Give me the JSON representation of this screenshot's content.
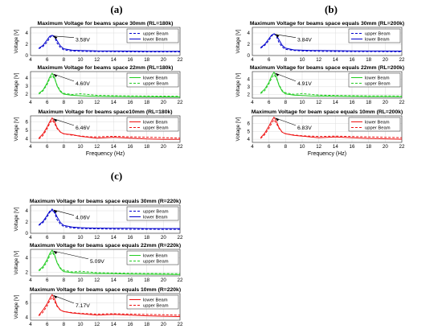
{
  "figure": {
    "groups": [
      {
        "letter": "(a)",
        "subplots": [
          {
            "title": "Maximum Voltage for beams space 30mm (RL=180k)",
            "annotation": "3.58V",
            "legend": [
              "upper Beam",
              "lower Beam"
            ],
            "color": "#0000cc",
            "solid_series": 1
          },
          {
            "title": "Maximum Voltage for beams space 22mm (RL=180k)",
            "annotation": "4.60V",
            "legend": [
              "lower Beam",
              "upper Beam"
            ],
            "color": "#22cc22",
            "solid_series": 0
          },
          {
            "title": "Maximum Voltage for beams space10mm (RL=180k)",
            "annotation": "6.46V",
            "legend": [
              "lower Beam",
              "upper Beam"
            ],
            "color": "#ee1111",
            "solid_series": 0
          }
        ]
      },
      {
        "letter": "(b)",
        "subplots": [
          {
            "title": "Maximum Voltage for beams space equals 30mm (RL=200k)",
            "annotation": "3.84V",
            "legend": [
              "upper Beam",
              "lower Beam"
            ],
            "color": "#0000cc",
            "solid_series": 1
          },
          {
            "title": "Maximum Voltage for beams space equals 22mm (RL=200k)",
            "annotation": "4.91V",
            "legend": [
              "lower Beam",
              "upper Beam"
            ],
            "color": "#22cc22",
            "solid_series": 0
          },
          {
            "title": "Maximum Voltage for beam space equals 10mm (RL=200k)",
            "annotation": "6.83V",
            "legend": [
              "lower Beam",
              "upper Beam"
            ],
            "color": "#ee1111",
            "solid_series": 0
          }
        ]
      },
      {
        "letter": "(c)",
        "subplots": [
          {
            "title": "Maximum Voltage for beams space equals 30mm (R=220k)",
            "annotation": "4.06V",
            "legend": [
              "upper Beam",
              "lower Beam"
            ],
            "color": "#0000cc",
            "solid_series": 1
          },
          {
            "title": "Maximum Voltage for beams space equals 22mm (R=220k)",
            "annotation": "5.09V",
            "legend": [
              "lower Beam",
              "upper Beam"
            ],
            "color": "#22cc22",
            "solid_series": 0
          },
          {
            "title": "Maximum Voltage for beams space equals 10mm (R=220k)",
            "annotation": "7.17V",
            "legend": [
              "lower Beam",
              "upper Beam"
            ],
            "color": "#ee1111",
            "solid_series": 0
          }
        ]
      }
    ],
    "xlabel": "Frequency (Hz)",
    "ylabel": "Voltage [V]"
  },
  "chart_data": [
    {
      "type": "line",
      "panel": "(a)",
      "title": "Maximum Voltage for beams space 30mm (RL=180k)",
      "xlabel": "",
      "ylabel": "Voltage [V]",
      "xlim": [
        4,
        22
      ],
      "ylim": [
        0,
        5
      ],
      "xticks": [
        4,
        6,
        8,
        10,
        12,
        14,
        16,
        18,
        20,
        22
      ],
      "yticks": [
        0,
        2,
        4
      ],
      "x": [
        5,
        5.5,
        6,
        6.3,
        6.6,
        6.9,
        7.2,
        7.6,
        8,
        9,
        10,
        11,
        12,
        14,
        16,
        18,
        20,
        22
      ],
      "series": [
        {
          "name": "upper Beam",
          "values": [
            1.2,
            1.6,
            2.4,
            3.1,
            3.6,
            3.2,
            2.2,
            1.4,
            1.0,
            0.8,
            0.75,
            0.72,
            0.7,
            0.68,
            0.66,
            0.65,
            0.65,
            0.64
          ]
        },
        {
          "name": "lower Beam",
          "values": [
            1.3,
            1.8,
            2.8,
            3.4,
            3.58,
            3.4,
            2.6,
            1.7,
            1.2,
            0.95,
            0.9,
            0.85,
            0.82,
            0.8,
            0.78,
            0.76,
            0.75,
            0.74
          ]
        }
      ],
      "annotation": "3.58V",
      "grid": true,
      "legend": "top-right"
    },
    {
      "type": "line",
      "panel": "(a)",
      "title": "Maximum Voltage for beams space 22mm (RL=180k)",
      "xlabel": "",
      "ylabel": "Voltage [V]",
      "xlim": [
        4,
        22
      ],
      "ylim": [
        1.5,
        4.8
      ],
      "xticks": [
        4,
        6,
        8,
        10,
        12,
        14,
        16,
        18,
        20,
        22
      ],
      "yticks": [
        2,
        3,
        4
      ],
      "x": [
        5,
        5.5,
        6,
        6.3,
        6.6,
        6.9,
        7.2,
        7.6,
        8,
        9,
        10,
        11,
        12,
        14,
        16,
        18,
        20,
        22
      ],
      "series": [
        {
          "name": "lower Beam",
          "values": [
            2.1,
            2.5,
            3.4,
            4.1,
            4.6,
            4.0,
            3.0,
            2.3,
            2.0,
            1.85,
            1.8,
            1.75,
            1.72,
            1.7,
            1.68,
            1.66,
            1.65,
            1.64
          ]
        },
        {
          "name": "upper Beam",
          "values": [
            2.0,
            2.4,
            3.2,
            3.9,
            4.3,
            3.9,
            3.1,
            2.4,
            2.1,
            1.95,
            2.05,
            1.95,
            1.85,
            1.8,
            1.78,
            1.76,
            1.75,
            1.74
          ]
        }
      ],
      "annotation": "4.60V",
      "grid": true,
      "legend": "top-right"
    },
    {
      "type": "line",
      "panel": "(a)",
      "title": "Maximum Voltage for beams space10mm (RL=180k)",
      "xlabel": "Frequency (Hz)",
      "ylabel": "Voltage [V]",
      "xlim": [
        4,
        22
      ],
      "ylim": [
        3.6,
        6.7
      ],
      "xticks": [
        4,
        6,
        8,
        10,
        12,
        14,
        16,
        18,
        20,
        22
      ],
      "yticks": [
        4,
        5,
        6
      ],
      "x": [
        5,
        5.5,
        6,
        6.3,
        6.6,
        6.9,
        7.2,
        7.6,
        8,
        9,
        10,
        11,
        12,
        14,
        16,
        18,
        20,
        22
      ],
      "series": [
        {
          "name": "lower Beam",
          "values": [
            4.1,
            4.6,
            5.4,
            6.0,
            6.46,
            6.0,
            5.3,
            4.8,
            4.6,
            4.5,
            4.3,
            4.2,
            4.1,
            4.2,
            4.1,
            4.0,
            3.95,
            3.95
          ]
        },
        {
          "name": "upper Beam",
          "values": [
            4.0,
            4.4,
            5.2,
            5.8,
            6.2,
            5.8,
            5.2,
            4.8,
            4.6,
            4.45,
            4.35,
            4.25,
            4.25,
            4.3,
            4.25,
            4.2,
            4.15,
            4.1
          ]
        }
      ],
      "annotation": "6.46V",
      "grid": true,
      "legend": "top-right"
    },
    {
      "type": "line",
      "panel": "(b)",
      "title": "Maximum Voltage for beams space equals 30mm (RL=200k)",
      "xlabel": "",
      "ylabel": "Voltage [V]",
      "xlim": [
        4,
        22
      ],
      "ylim": [
        0,
        5
      ],
      "xticks": [
        4,
        6,
        8,
        10,
        12,
        14,
        16,
        18,
        20,
        22
      ],
      "yticks": [
        0,
        2,
        4
      ],
      "x": [
        5,
        5.5,
        6,
        6.3,
        6.6,
        6.9,
        7.2,
        7.6,
        8,
        9,
        10,
        11,
        12,
        14,
        16,
        18,
        20,
        22
      ],
      "series": [
        {
          "name": "upper Beam",
          "values": [
            1.3,
            1.8,
            2.7,
            3.4,
            3.9,
            3.4,
            2.3,
            1.5,
            1.1,
            0.9,
            0.8,
            0.78,
            0.75,
            0.72,
            0.7,
            0.7,
            0.68,
            0.68
          ]
        },
        {
          "name": "lower Beam",
          "values": [
            1.4,
            2.0,
            3.0,
            3.6,
            3.84,
            3.6,
            2.8,
            1.8,
            1.3,
            1.0,
            0.95,
            0.9,
            0.88,
            0.85,
            0.82,
            0.8,
            0.8,
            0.78
          ]
        }
      ],
      "annotation": "3.84V",
      "grid": true,
      "legend": "top-right"
    },
    {
      "type": "line",
      "panel": "(b)",
      "title": "Maximum Voltage for beams space equals 22mm (RL=200k)",
      "xlabel": "",
      "ylabel": "Voltage [V]",
      "xlim": [
        4,
        22
      ],
      "ylim": [
        1.5,
        5
      ],
      "xticks": [
        4,
        6,
        8,
        10,
        12,
        14,
        16,
        18,
        20,
        22
      ],
      "yticks": [
        2,
        3,
        4
      ],
      "x": [
        5,
        5.5,
        6,
        6.3,
        6.6,
        6.9,
        7.2,
        7.6,
        8,
        9,
        10,
        11,
        12,
        14,
        16,
        18,
        20,
        22
      ],
      "series": [
        {
          "name": "lower Beam",
          "values": [
            2.2,
            2.7,
            3.6,
            4.4,
            4.91,
            4.3,
            3.2,
            2.4,
            2.05,
            1.9,
            1.85,
            1.8,
            1.78,
            1.75,
            1.72,
            1.7,
            1.7,
            1.68
          ]
        },
        {
          "name": "upper Beam",
          "values": [
            2.1,
            2.5,
            3.4,
            4.1,
            4.6,
            4.1,
            3.3,
            2.5,
            2.2,
            2.0,
            2.1,
            2.0,
            1.9,
            1.85,
            1.82,
            1.8,
            1.8,
            1.78
          ]
        }
      ],
      "annotation": "4.91V",
      "grid": true,
      "legend": "top-right"
    },
    {
      "type": "line",
      "panel": "(b)",
      "title": "Maximum Voltage for beam space equals 10mm (RL=200k)",
      "xlabel": "Frequency (Hz)",
      "ylabel": "Voltage [V]",
      "xlim": [
        4,
        22
      ],
      "ylim": [
        3.6,
        7
      ],
      "xticks": [
        4,
        6,
        8,
        10,
        12,
        14,
        16,
        18,
        20,
        22
      ],
      "yticks": [
        4,
        5,
        6
      ],
      "x": [
        5,
        5.5,
        6,
        6.3,
        6.6,
        6.9,
        7.2,
        7.6,
        8,
        9,
        10,
        11,
        12,
        14,
        16,
        18,
        20,
        22
      ],
      "series": [
        {
          "name": "lower Beam",
          "values": [
            4.2,
            4.8,
            5.7,
            6.3,
            6.83,
            6.3,
            5.5,
            4.9,
            4.7,
            4.5,
            4.4,
            4.3,
            4.2,
            4.3,
            4.2,
            4.1,
            4.05,
            4.0
          ]
        },
        {
          "name": "upper Beam",
          "values": [
            4.1,
            4.6,
            5.4,
            6.0,
            6.5,
            6.0,
            5.4,
            4.9,
            4.7,
            4.55,
            4.45,
            4.4,
            4.35,
            4.4,
            4.35,
            4.3,
            4.25,
            4.2
          ]
        }
      ],
      "annotation": "6.83V",
      "grid": true,
      "legend": "top-right"
    },
    {
      "type": "line",
      "panel": "(c)",
      "title": "Maximum Voltage for beams space equals 30mm (R=220k)",
      "xlabel": "",
      "ylabel": "Voltage [V]",
      "xlim": [
        4,
        22
      ],
      "ylim": [
        0,
        5
      ],
      "xticks": [
        4,
        6,
        8,
        10,
        12,
        14,
        16,
        18,
        20,
        22
      ],
      "yticks": [
        0,
        2,
        4
      ],
      "x": [
        5,
        5.5,
        6,
        6.3,
        6.6,
        6.9,
        7.2,
        7.6,
        8,
        9,
        10,
        11,
        12,
        14,
        16,
        18,
        20,
        22
      ],
      "series": [
        {
          "name": "upper Beam",
          "values": [
            1.4,
            1.9,
            2.9,
            3.7,
            4.3,
            3.6,
            2.4,
            1.6,
            1.2,
            0.95,
            0.85,
            0.8,
            0.78,
            0.75,
            0.72,
            0.72,
            0.7,
            0.7
          ]
        },
        {
          "name": "lower Beam",
          "values": [
            1.5,
            2.1,
            3.2,
            3.9,
            4.06,
            3.8,
            2.9,
            1.9,
            1.4,
            1.1,
            1.0,
            0.95,
            0.92,
            0.9,
            0.88,
            0.85,
            0.85,
            0.84
          ]
        }
      ],
      "annotation": "4.06V",
      "grid": true,
      "legend": "top-right"
    },
    {
      "type": "line",
      "panel": "(c)",
      "title": "Maximum Voltage for beams space equals 22mm (R=220k)",
      "xlabel": "",
      "ylabel": "Voltage [V]",
      "xlim": [
        4,
        22
      ],
      "ylim": [
        1.5,
        5.2
      ],
      "xticks": [
        4,
        6,
        8,
        10,
        12,
        14,
        16,
        18,
        20,
        22
      ],
      "yticks": [
        2,
        4
      ],
      "x": [
        5,
        5.5,
        6,
        6.3,
        6.6,
        6.9,
        7.2,
        7.6,
        8,
        9,
        10,
        11,
        12,
        14,
        16,
        18,
        20,
        22
      ],
      "series": [
        {
          "name": "lower Beam",
          "values": [
            2.3,
            2.8,
            3.8,
            4.6,
            5.09,
            4.4,
            3.3,
            2.5,
            2.1,
            1.95,
            1.9,
            1.85,
            1.82,
            1.8,
            1.76,
            1.74,
            1.72,
            1.7
          ]
        },
        {
          "name": "upper Beam",
          "values": [
            2.2,
            2.6,
            3.5,
            4.3,
            4.8,
            4.3,
            3.4,
            2.6,
            2.3,
            2.05,
            2.15,
            2.05,
            1.95,
            1.9,
            1.86,
            1.84,
            1.82,
            1.8
          ]
        }
      ],
      "annotation": "5.09V",
      "grid": true,
      "legend": "top-right"
    },
    {
      "type": "line",
      "panel": "(c)",
      "title": "Maximum Voltage for beams space equals 10mm (R=220k)",
      "xlabel": "Frequency (Hz)",
      "ylabel": "Voltage [V]",
      "xlim": [
        4,
        22
      ],
      "ylim": [
        3.6,
        7.3
      ],
      "xticks": [
        4,
        6,
        8,
        10,
        12,
        14,
        16,
        18,
        20,
        22
      ],
      "yticks": [
        4,
        6
      ],
      "x": [
        5,
        5.5,
        6,
        6.3,
        6.6,
        6.9,
        7.2,
        7.6,
        8,
        9,
        10,
        11,
        12,
        14,
        16,
        18,
        20,
        22
      ],
      "series": [
        {
          "name": "lower Beam",
          "values": [
            4.3,
            5.0,
            5.9,
            6.6,
            7.17,
            6.5,
            5.6,
            5.0,
            4.8,
            4.6,
            4.5,
            4.4,
            4.3,
            4.4,
            4.3,
            4.2,
            4.15,
            4.1
          ]
        },
        {
          "name": "upper Beam",
          "values": [
            4.2,
            4.7,
            5.6,
            6.3,
            6.8,
            6.2,
            5.5,
            5.0,
            4.8,
            4.65,
            4.55,
            4.5,
            4.45,
            4.5,
            4.45,
            4.4,
            4.35,
            4.3
          ]
        }
      ],
      "annotation": "7.17V",
      "grid": true,
      "legend": "top-right"
    }
  ]
}
